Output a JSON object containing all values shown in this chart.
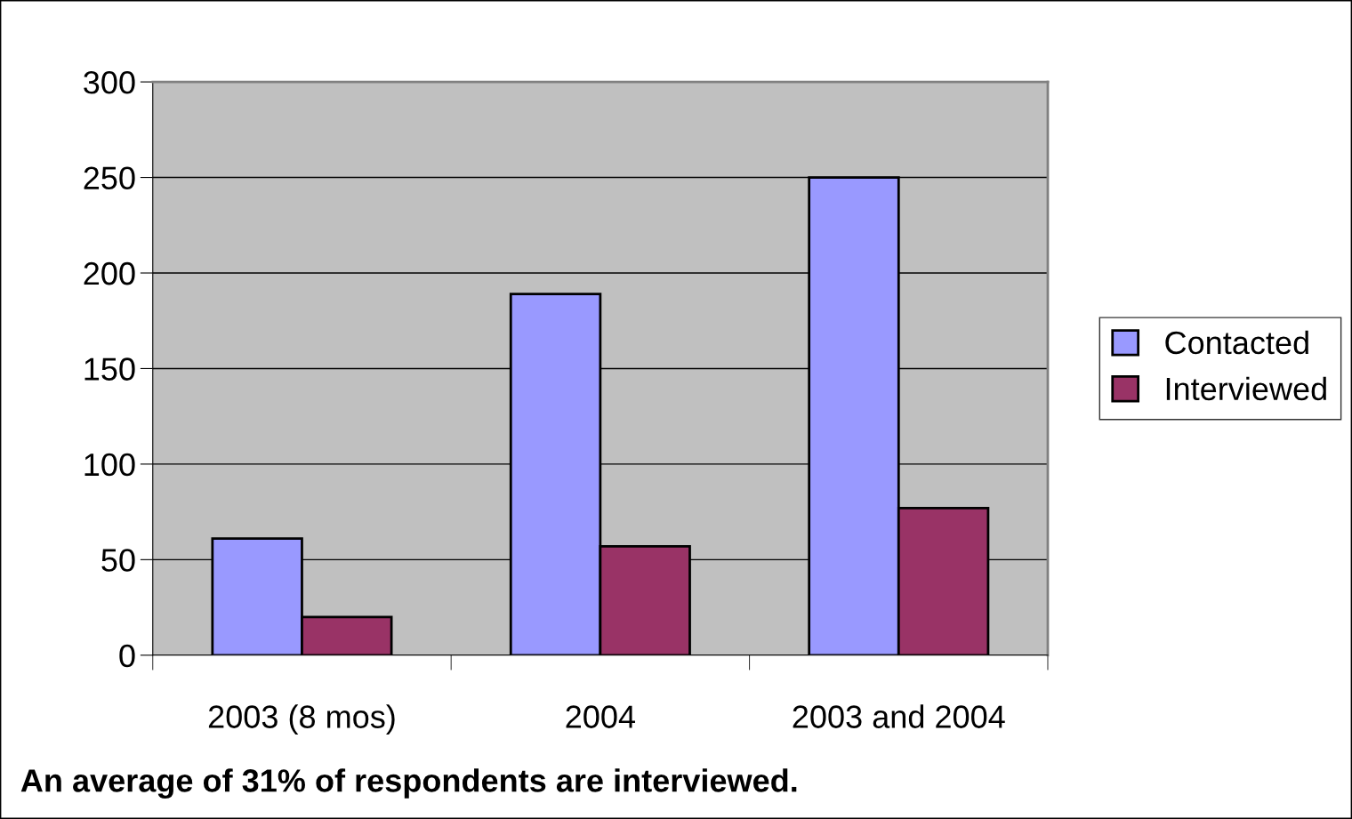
{
  "chart_data": {
    "type": "bar",
    "categories": [
      "2003 (8 mos)",
      "2004",
      "2003 and 2004"
    ],
    "series": [
      {
        "name": "Contacted",
        "color": "#9999ff",
        "values": [
          61,
          189,
          250
        ]
      },
      {
        "name": "Interviewed",
        "color": "#993366",
        "values": [
          20,
          57,
          77
        ]
      }
    ],
    "ylim": [
      0,
      300
    ],
    "yticks": [
      0,
      50,
      100,
      150,
      200,
      250,
      300
    ],
    "grid": "y",
    "legend": "right",
    "annotations": [
      "An average of 31% of respondents are interviewed."
    ]
  }
}
